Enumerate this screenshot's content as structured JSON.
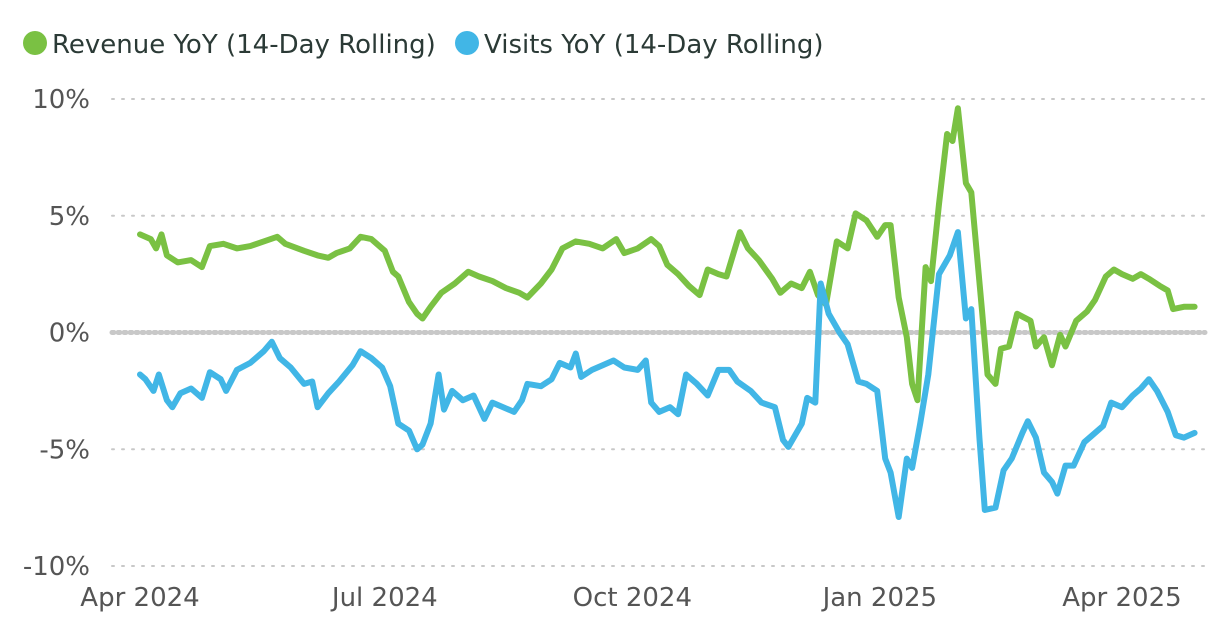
{
  "chart_data": {
    "type": "line",
    "title": "",
    "xlabel": "",
    "ylabel": "",
    "x_range": [
      "2024-04-01",
      "2025-04-30"
    ],
    "ylim": [
      -10,
      10
    ],
    "y_ticks": [
      10,
      5,
      0,
      -5,
      -10
    ],
    "y_tick_labels": [
      "10%",
      "5%",
      "0%",
      "-5%",
      "-10%"
    ],
    "x_ticks": [
      "2024-04-01",
      "2024-07-01",
      "2024-10-01",
      "2025-01-01",
      "2025-04-01"
    ],
    "x_tick_labels": [
      "Apr 2024",
      "Jul 2024",
      "Oct 2024",
      "Jan 2025",
      "Apr 2025"
    ],
    "grid": "horizontal dotted",
    "legend_position": "top-left",
    "series": [
      {
        "name": "Revenue YoY (14-Day Rolling)",
        "color": "#7ac143",
        "points": [
          [
            "2024-04-01",
            4.2
          ],
          [
            "2024-04-05",
            4.0
          ],
          [
            "2024-04-07",
            3.6
          ],
          [
            "2024-04-09",
            4.2
          ],
          [
            "2024-04-11",
            3.3
          ],
          [
            "2024-04-15",
            3.0
          ],
          [
            "2024-04-20",
            3.1
          ],
          [
            "2024-04-24",
            2.8
          ],
          [
            "2024-04-27",
            3.7
          ],
          [
            "2024-05-02",
            3.8
          ],
          [
            "2024-05-07",
            3.6
          ],
          [
            "2024-05-12",
            3.7
          ],
          [
            "2024-05-17",
            3.9
          ],
          [
            "2024-05-22",
            4.1
          ],
          [
            "2024-05-25",
            3.8
          ],
          [
            "2024-06-01",
            3.5
          ],
          [
            "2024-06-06",
            3.3
          ],
          [
            "2024-06-10",
            3.2
          ],
          [
            "2024-06-13",
            3.4
          ],
          [
            "2024-06-18",
            3.6
          ],
          [
            "2024-06-22",
            4.1
          ],
          [
            "2024-06-26",
            4.0
          ],
          [
            "2024-07-01",
            3.5
          ],
          [
            "2024-07-04",
            2.6
          ],
          [
            "2024-07-06",
            2.4
          ],
          [
            "2024-07-10",
            1.3
          ],
          [
            "2024-07-13",
            0.8
          ],
          [
            "2024-07-15",
            0.6
          ],
          [
            "2024-07-18",
            1.1
          ],
          [
            "2024-07-22",
            1.7
          ],
          [
            "2024-07-27",
            2.1
          ],
          [
            "2024-08-01",
            2.6
          ],
          [
            "2024-08-05",
            2.4
          ],
          [
            "2024-08-10",
            2.2
          ],
          [
            "2024-08-15",
            1.9
          ],
          [
            "2024-08-20",
            1.7
          ],
          [
            "2024-08-23",
            1.5
          ],
          [
            "2024-08-28",
            2.1
          ],
          [
            "2024-09-01",
            2.7
          ],
          [
            "2024-09-05",
            3.6
          ],
          [
            "2024-09-10",
            3.9
          ],
          [
            "2024-09-15",
            3.8
          ],
          [
            "2024-09-20",
            3.6
          ],
          [
            "2024-09-25",
            4.0
          ],
          [
            "2024-09-28",
            3.4
          ],
          [
            "2024-10-03",
            3.6
          ],
          [
            "2024-10-08",
            4.0
          ],
          [
            "2024-10-11",
            3.7
          ],
          [
            "2024-10-14",
            2.9
          ],
          [
            "2024-10-18",
            2.5
          ],
          [
            "2024-10-22",
            2.0
          ],
          [
            "2024-10-26",
            1.6
          ],
          [
            "2024-10-29",
            2.7
          ],
          [
            "2024-11-02",
            2.5
          ],
          [
            "2024-11-05",
            2.4
          ],
          [
            "2024-11-10",
            4.3
          ],
          [
            "2024-11-13",
            3.6
          ],
          [
            "2024-11-17",
            3.1
          ],
          [
            "2024-11-22",
            2.3
          ],
          [
            "2024-11-25",
            1.7
          ],
          [
            "2024-11-29",
            2.1
          ],
          [
            "2024-12-03",
            1.9
          ],
          [
            "2024-12-06",
            2.6
          ],
          [
            "2024-12-09",
            1.6
          ],
          [
            "2024-12-12",
            1.2
          ],
          [
            "2024-12-16",
            3.9
          ],
          [
            "2024-12-20",
            3.6
          ],
          [
            "2024-12-23",
            5.1
          ],
          [
            "2024-12-27",
            4.8
          ],
          [
            "2024-12-31",
            4.1
          ],
          [
            "2025-01-03",
            4.6
          ],
          [
            "2025-01-05",
            4.6
          ],
          [
            "2025-01-08",
            1.5
          ],
          [
            "2025-01-11",
            -0.2
          ],
          [
            "2025-01-13",
            -2.2
          ],
          [
            "2025-01-15",
            -2.9
          ],
          [
            "2025-01-18",
            2.8
          ],
          [
            "2025-01-20",
            2.2
          ],
          [
            "2025-01-23",
            5.5
          ],
          [
            "2025-01-26",
            8.5
          ],
          [
            "2025-01-28",
            8.2
          ],
          [
            "2025-01-30",
            9.6
          ],
          [
            "2025-02-02",
            6.4
          ],
          [
            "2025-02-04",
            6.0
          ],
          [
            "2025-02-08",
            0.9
          ],
          [
            "2025-02-10",
            -1.8
          ],
          [
            "2025-02-13",
            -2.2
          ],
          [
            "2025-02-15",
            -0.7
          ],
          [
            "2025-02-18",
            -0.6
          ],
          [
            "2025-02-21",
            0.8
          ],
          [
            "2025-02-26",
            0.5
          ],
          [
            "2025-02-28",
            -0.6
          ],
          [
            "2025-03-03",
            -0.2
          ],
          [
            "2025-03-06",
            -1.4
          ],
          [
            "2025-03-09",
            -0.1
          ],
          [
            "2025-03-11",
            -0.6
          ],
          [
            "2025-03-15",
            0.5
          ],
          [
            "2025-03-19",
            0.9
          ],
          [
            "2025-03-22",
            1.4
          ],
          [
            "2025-03-26",
            2.4
          ],
          [
            "2025-03-29",
            2.7
          ],
          [
            "2025-04-01",
            2.5
          ],
          [
            "2025-04-05",
            2.3
          ],
          [
            "2025-04-08",
            2.5
          ],
          [
            "2025-04-11",
            2.3
          ],
          [
            "2025-04-15",
            2.0
          ],
          [
            "2025-04-18",
            1.8
          ],
          [
            "2025-04-20",
            1.0
          ],
          [
            "2025-04-24",
            1.1
          ],
          [
            "2025-04-28",
            1.1
          ]
        ]
      },
      {
        "name": "Visits YoY (14-Day Rolling)",
        "color": "#41b6e6",
        "points": [
          [
            "2024-04-01",
            -1.8
          ],
          [
            "2024-04-03",
            -2.0
          ],
          [
            "2024-04-06",
            -2.5
          ],
          [
            "2024-04-08",
            -1.8
          ],
          [
            "2024-04-11",
            -2.9
          ],
          [
            "2024-04-13",
            -3.2
          ],
          [
            "2024-04-16",
            -2.6
          ],
          [
            "2024-04-20",
            -2.4
          ],
          [
            "2024-04-24",
            -2.8
          ],
          [
            "2024-04-27",
            -1.7
          ],
          [
            "2024-05-01",
            -2.0
          ],
          [
            "2024-05-03",
            -2.5
          ],
          [
            "2024-05-07",
            -1.6
          ],
          [
            "2024-05-12",
            -1.3
          ],
          [
            "2024-05-17",
            -0.8
          ],
          [
            "2024-05-20",
            -0.4
          ],
          [
            "2024-05-23",
            -1.1
          ],
          [
            "2024-05-27",
            -1.5
          ],
          [
            "2024-06-01",
            -2.2
          ],
          [
            "2024-06-04",
            -2.1
          ],
          [
            "2024-06-06",
            -3.2
          ],
          [
            "2024-06-10",
            -2.6
          ],
          [
            "2024-06-14",
            -2.1
          ],
          [
            "2024-06-19",
            -1.4
          ],
          [
            "2024-06-22",
            -0.8
          ],
          [
            "2024-06-26",
            -1.1
          ],
          [
            "2024-06-30",
            -1.5
          ],
          [
            "2024-07-03",
            -2.3
          ],
          [
            "2024-07-06",
            -3.9
          ],
          [
            "2024-07-10",
            -4.2
          ],
          [
            "2024-07-13",
            -5.0
          ],
          [
            "2024-07-15",
            -4.8
          ],
          [
            "2024-07-18",
            -3.9
          ],
          [
            "2024-07-21",
            -1.8
          ],
          [
            "2024-07-23",
            -3.3
          ],
          [
            "2024-07-26",
            -2.5
          ],
          [
            "2024-07-30",
            -2.9
          ],
          [
            "2024-08-03",
            -2.7
          ],
          [
            "2024-08-07",
            -3.7
          ],
          [
            "2024-08-10",
            -3.0
          ],
          [
            "2024-08-14",
            -3.2
          ],
          [
            "2024-08-18",
            -3.4
          ],
          [
            "2024-08-21",
            -2.9
          ],
          [
            "2024-08-23",
            -2.2
          ],
          [
            "2024-08-28",
            -2.3
          ],
          [
            "2024-09-01",
            -2.0
          ],
          [
            "2024-09-04",
            -1.3
          ],
          [
            "2024-09-08",
            -1.5
          ],
          [
            "2024-09-10",
            -0.9
          ],
          [
            "2024-09-12",
            -1.9
          ],
          [
            "2024-09-16",
            -1.6
          ],
          [
            "2024-09-20",
            -1.4
          ],
          [
            "2024-09-24",
            -1.2
          ],
          [
            "2024-09-28",
            -1.5
          ],
          [
            "2024-10-03",
            -1.6
          ],
          [
            "2024-10-06",
            -1.2
          ],
          [
            "2024-10-08",
            -3.0
          ],
          [
            "2024-10-11",
            -3.4
          ],
          [
            "2024-10-15",
            -3.2
          ],
          [
            "2024-10-18",
            -3.5
          ],
          [
            "2024-10-21",
            -1.8
          ],
          [
            "2024-10-25",
            -2.2
          ],
          [
            "2024-10-29",
            -2.7
          ],
          [
            "2024-11-02",
            -1.6
          ],
          [
            "2024-11-06",
            -1.6
          ],
          [
            "2024-11-09",
            -2.1
          ],
          [
            "2024-11-14",
            -2.5
          ],
          [
            "2024-11-18",
            -3.0
          ],
          [
            "2024-11-23",
            -3.2
          ],
          [
            "2024-11-26",
            -4.6
          ],
          [
            "2024-11-28",
            -4.9
          ],
          [
            "2024-12-03",
            -3.9
          ],
          [
            "2024-12-05",
            -2.8
          ],
          [
            "2024-12-08",
            -3.0
          ],
          [
            "2024-12-10",
            2.1
          ],
          [
            "2024-12-13",
            0.8
          ],
          [
            "2024-12-17",
            0.0
          ],
          [
            "2024-12-20",
            -0.5
          ],
          [
            "2024-12-24",
            -2.1
          ],
          [
            "2024-12-27",
            -2.2
          ],
          [
            "2024-12-31",
            -2.5
          ],
          [
            "2025-01-03",
            -5.4
          ],
          [
            "2025-01-05",
            -6.0
          ],
          [
            "2025-01-08",
            -7.9
          ],
          [
            "2025-01-11",
            -5.4
          ],
          [
            "2025-01-13",
            -5.8
          ],
          [
            "2025-01-16",
            -3.9
          ],
          [
            "2025-01-19",
            -1.8
          ],
          [
            "2025-01-23",
            2.5
          ],
          [
            "2025-01-27",
            3.3
          ],
          [
            "2025-01-30",
            4.3
          ],
          [
            "2025-02-02",
            0.6
          ],
          [
            "2025-02-04",
            1.0
          ],
          [
            "2025-02-07",
            -4.5
          ],
          [
            "2025-02-09",
            -7.6
          ],
          [
            "2025-02-13",
            -7.5
          ],
          [
            "2025-02-16",
            -5.9
          ],
          [
            "2025-02-19",
            -5.4
          ],
          [
            "2025-02-23",
            -4.3
          ],
          [
            "2025-02-25",
            -3.8
          ],
          [
            "2025-02-28",
            -4.5
          ],
          [
            "2025-03-03",
            -6.0
          ],
          [
            "2025-03-06",
            -6.4
          ],
          [
            "2025-03-08",
            -6.9
          ],
          [
            "2025-03-11",
            -5.7
          ],
          [
            "2025-03-14",
            -5.7
          ],
          [
            "2025-03-18",
            -4.7
          ],
          [
            "2025-03-21",
            -4.4
          ],
          [
            "2025-03-25",
            -4.0
          ],
          [
            "2025-03-28",
            -3.0
          ],
          [
            "2025-04-01",
            -3.2
          ],
          [
            "2025-04-05",
            -2.7
          ],
          [
            "2025-04-08",
            -2.4
          ],
          [
            "2025-04-11",
            -2.0
          ],
          [
            "2025-04-14",
            -2.5
          ],
          [
            "2025-04-18",
            -3.4
          ],
          [
            "2025-04-21",
            -4.4
          ],
          [
            "2025-04-24",
            -4.5
          ],
          [
            "2025-04-28",
            -4.3
          ]
        ]
      }
    ]
  }
}
